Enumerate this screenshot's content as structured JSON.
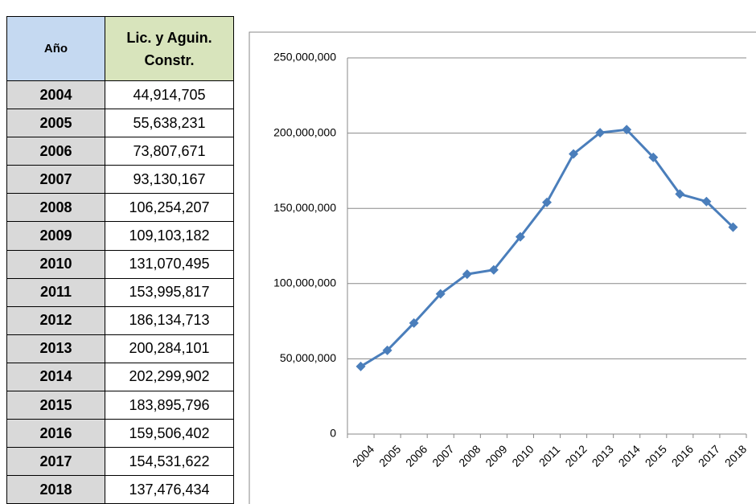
{
  "table": {
    "headers": [
      "Año",
      "Lic. y Aguin. Constr."
    ]
  },
  "chart_data": {
    "type": "line",
    "categories": [
      "2004",
      "2005",
      "2006",
      "2007",
      "2008",
      "2009",
      "2010",
      "2011",
      "2012",
      "2013",
      "2014",
      "2015",
      "2016",
      "2017",
      "2018"
    ],
    "values": [
      44914705,
      55638231,
      73807671,
      93130167,
      106254207,
      109103182,
      131070495,
      153995817,
      186134713,
      200284101,
      202299902,
      183895796,
      159506402,
      154531622,
      137476434
    ],
    "value_labels": [
      "44,914,705",
      "55,638,231",
      "73,807,671",
      "93,130,167",
      "106,254,207",
      "109,103,182",
      "131,070,495",
      "153,995,817",
      "186,134,713",
      "200,284,101",
      "202,299,902",
      "183,895,796",
      "159,506,402",
      "154,531,622",
      "137,476,434"
    ],
    "color": "#4a7ebb",
    "ylim": [
      0,
      250000000
    ],
    "yticks": [
      0,
      {
        "value": 50000000,
        "label": "50,000,000"
      },
      {
        "value": 100000000,
        "label": "100,000,000"
      },
      {
        "value": 150000000,
        "label": "150,000,000"
      },
      {
        "value": 200000000,
        "label": "200,000,000"
      },
      {
        "value": 250000000,
        "label": "250,000,000"
      }
    ],
    "grid": true
  }
}
